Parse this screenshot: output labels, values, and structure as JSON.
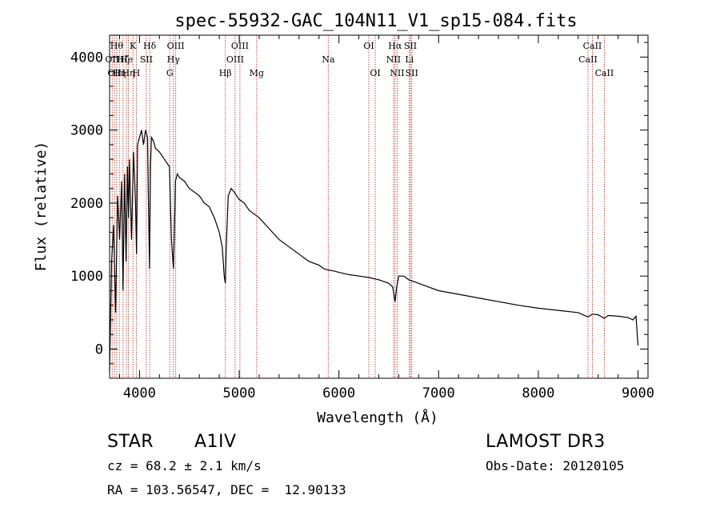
{
  "chart_data": {
    "type": "line",
    "title": "spec-55932-GAC_104N11_V1_sp15-084.fits",
    "xlabel": "Wavelength (Å)",
    "ylabel": "Flux (relative)",
    "xlim": [
      3700,
      9100
    ],
    "ylim": [
      -400,
      4300
    ],
    "xticks": [
      4000,
      5000,
      6000,
      7000,
      8000,
      9000
    ],
    "yticks": [
      0,
      1000,
      2000,
      3000,
      4000
    ],
    "grid": false,
    "series": [
      {
        "name": "spectrum",
        "x": [
          3700,
          3720,
          3740,
          3760,
          3780,
          3800,
          3820,
          3835,
          3850,
          3865,
          3880,
          3890,
          3900,
          3920,
          3940,
          3960,
          3970,
          3980,
          4000,
          4020,
          4040,
          4060,
          4080,
          4090,
          4100,
          4110,
          4120,
          4140,
          4160,
          4200,
          4250,
          4300,
          4320,
          4340,
          4350,
          4360,
          4380,
          4400,
          4450,
          4500,
          4550,
          4600,
          4650,
          4700,
          4750,
          4800,
          4830,
          4850,
          4861,
          4870,
          4890,
          4920,
          4950,
          5000,
          5050,
          5100,
          5200,
          5300,
          5400,
          5500,
          5600,
          5700,
          5800,
          5850,
          5900,
          5950,
          6000,
          6100,
          6200,
          6300,
          6400,
          6500,
          6540,
          6563,
          6580,
          6600,
          6650,
          6700,
          6800,
          6900,
          7000,
          7200,
          7400,
          7600,
          7800,
          8000,
          8200,
          8400,
          8498,
          8542,
          8600,
          8662,
          8700,
          8800,
          8900,
          8950,
          8980,
          9000
        ],
        "values": [
          -300,
          1200,
          1700,
          500,
          2100,
          1500,
          2300,
          800,
          2400,
          1200,
          2500,
          1800,
          2600,
          1500,
          2700,
          2000,
          1300,
          2800,
          2900,
          3000,
          2800,
          3000,
          2900,
          2000,
          1100,
          2500,
          2900,
          2850,
          2750,
          2700,
          2600,
          2500,
          1500,
          1100,
          1600,
          2300,
          2400,
          2350,
          2300,
          2200,
          2150,
          2100,
          2000,
          1950,
          1800,
          1600,
          1400,
          1000,
          900,
          1400,
          2100,
          2200,
          2150,
          2050,
          2000,
          1900,
          1800,
          1650,
          1500,
          1400,
          1300,
          1200,
          1150,
          1100,
          1080,
          1070,
          1050,
          1020,
          1000,
          980,
          950,
          900,
          850,
          650,
          850,
          1000,
          1000,
          950,
          900,
          850,
          800,
          750,
          700,
          650,
          600,
          560,
          530,
          500,
          440,
          480,
          470,
          420,
          460,
          450,
          430,
          400,
          450,
          50
        ]
      }
    ],
    "line_annotations": [
      {
        "wavelength": 3726,
        "label": "OII",
        "row": 2
      },
      {
        "wavelength": 3750,
        "label": "OII",
        "row": 3
      },
      {
        "wavelength": 3771,
        "label": "Hθ",
        "row": 1
      },
      {
        "wavelength": 3798,
        "label": "Hη",
        "row": 3
      },
      {
        "wavelength": 3835,
        "label": "Hζ",
        "row": 2
      },
      {
        "wavelength": 3869,
        "label": "He",
        "row": 2
      },
      {
        "wavelength": 3889,
        "label": "Hη",
        "row": 3
      },
      {
        "wavelength": 3934,
        "label": "K",
        "row": 1
      },
      {
        "wavelength": 3968,
        "label": "H",
        "row": 3
      },
      {
        "wavelength": 4068,
        "label": "SII",
        "row": 2
      },
      {
        "wavelength": 4102,
        "label": "Hδ",
        "row": 1
      },
      {
        "wavelength": 4304,
        "label": "G",
        "row": 3
      },
      {
        "wavelength": 4340,
        "label": "Hγ",
        "row": 2
      },
      {
        "wavelength": 4363,
        "label": "OIII",
        "row": 1
      },
      {
        "wavelength": 4861,
        "label": "Hβ",
        "row": 3
      },
      {
        "wavelength": 4959,
        "label": "OIII",
        "row": 2
      },
      {
        "wavelength": 5007,
        "label": "OIII",
        "row": 1
      },
      {
        "wavelength": 5175,
        "label": "Mg",
        "row": 3
      },
      {
        "wavelength": 5893,
        "label": "Na",
        "row": 2
      },
      {
        "wavelength": 6300,
        "label": "OI",
        "row": 1
      },
      {
        "wavelength": 6364,
        "label": "OI",
        "row": 3
      },
      {
        "wavelength": 6548,
        "label": "NII",
        "row": 2
      },
      {
        "wavelength": 6563,
        "label": "Hα",
        "row": 1
      },
      {
        "wavelength": 6584,
        "label": "NII",
        "row": 3
      },
      {
        "wavelength": 6707,
        "label": "Li",
        "row": 2
      },
      {
        "wavelength": 6717,
        "label": "SII",
        "row": 1
      },
      {
        "wavelength": 6731,
        "label": "SII",
        "row": 3
      },
      {
        "wavelength": 8498,
        "label": "CaII",
        "row": 2
      },
      {
        "wavelength": 8542,
        "label": "CaII",
        "row": 1
      },
      {
        "wavelength": 8662,
        "label": "CaII",
        "row": 3
      }
    ]
  },
  "info": {
    "class": "STAR",
    "subclass": "A1IV",
    "survey": "LAMOST DR3",
    "redshift": "cz = 68.2 ± 2.1 km/s",
    "obs_date": "Obs-Date: 20120105",
    "coords": "RA = 103.56547, DEC =  12.90133"
  }
}
